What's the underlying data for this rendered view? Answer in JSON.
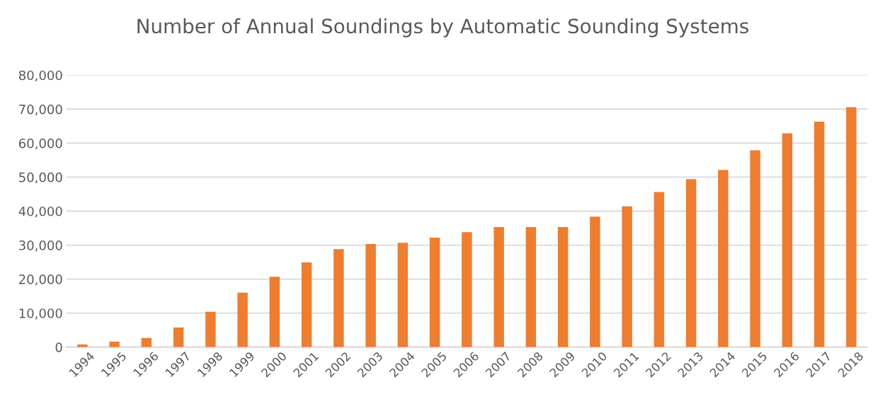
{
  "chart_data": {
    "type": "bar",
    "title": "Number of Annual Soundings by Automatic Sounding Systems",
    "categories": [
      "1994",
      "1995",
      "1996",
      "1997",
      "1998",
      "1999",
      "2000",
      "2001",
      "2002",
      "2003",
      "2004",
      "2005",
      "2006",
      "2007",
      "2008",
      "2009",
      "2010",
      "2011",
      "2012",
      "2013",
      "2014",
      "2015",
      "2016",
      "2017",
      "2018"
    ],
    "values": [
      800,
      1600,
      2700,
      5800,
      10400,
      16000,
      20700,
      24900,
      28800,
      30300,
      30700,
      32200,
      33800,
      35300,
      35300,
      35300,
      38400,
      41400,
      45600,
      49400,
      52100,
      57900,
      62900,
      66300,
      70600
    ],
    "color": "#ed7d31",
    "ylim": [
      0,
      80000
    ],
    "yticks": [
      {
        "value": 0,
        "label": "0"
      },
      {
        "value": 10000,
        "label": "10,000"
      },
      {
        "value": 20000,
        "label": "20,000"
      },
      {
        "value": 30000,
        "label": "30,000"
      },
      {
        "value": 40000,
        "label": "40,000"
      },
      {
        "value": 50000,
        "label": "50,000"
      },
      {
        "value": 60000,
        "label": "60,000"
      },
      {
        "value": 70000,
        "label": "70,000"
      },
      {
        "value": 80000,
        "label": "80,000"
      }
    ],
    "grid": "y",
    "legend": false
  }
}
